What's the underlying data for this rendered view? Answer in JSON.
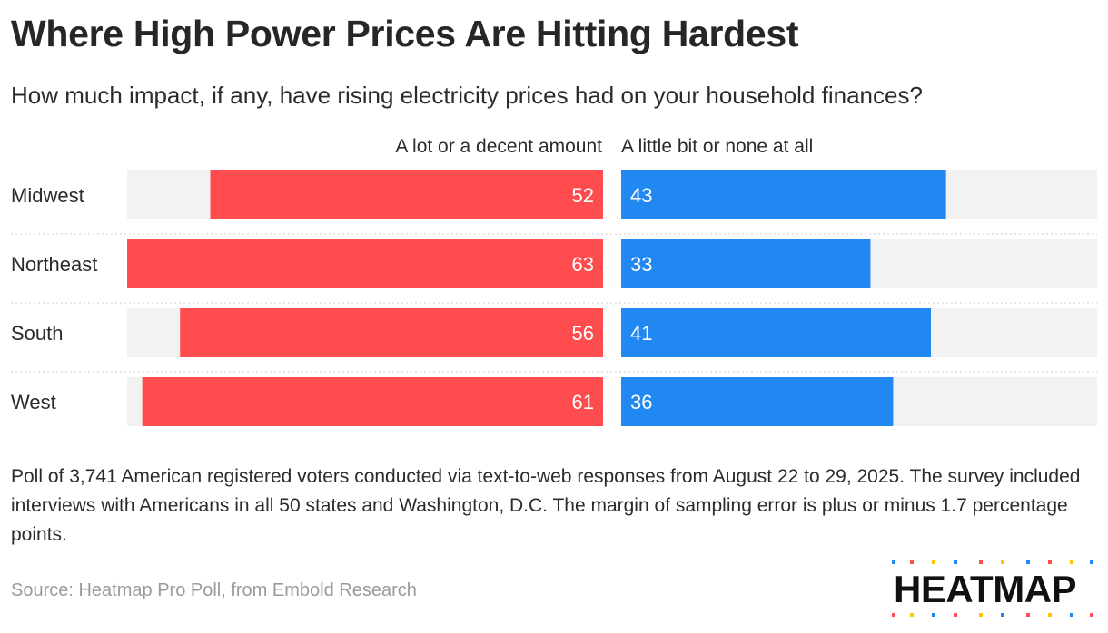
{
  "title": "Where High Power Prices Are Hitting Hardest",
  "subtitle": "How much impact, if any, have rising electricity prices had on your household finances?",
  "note": "Poll of 3,741 American registered voters conducted via text-to-web responses from August 22 to 29, 2025. The survey included interviews with Americans in all 50 states and Washington, D.C. The margin of sampling error is plus or minus 1.7 percentage points.",
  "source": "Source: Heatmap Pro Poll, from Embold Research",
  "logo_text": "HEATMAP",
  "colors": {
    "left_bar": "#ff4d4f",
    "right_bar": "#2188f2",
    "track": "#f2f2f2"
  },
  "chart_data": {
    "type": "bar",
    "orientation": "diverging-horizontal",
    "categories": [
      "Midwest",
      "Northeast",
      "South",
      "West"
    ],
    "series": [
      {
        "name": "A lot or a decent amount",
        "values": [
          52,
          63,
          56,
          61
        ]
      },
      {
        "name": "A little bit or none at all",
        "values": [
          43,
          33,
          41,
          36
        ]
      }
    ],
    "xlim": [
      0,
      63
    ],
    "grid": false,
    "legend": "top"
  }
}
